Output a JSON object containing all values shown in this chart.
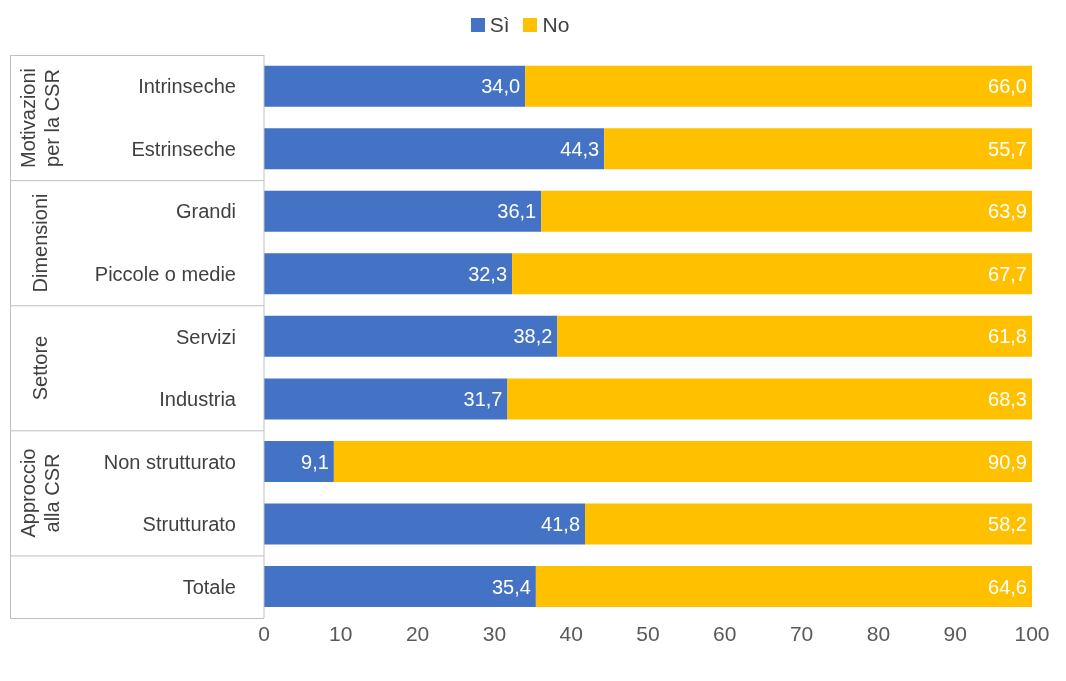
{
  "chart_data": {
    "type": "bar",
    "orientation": "horizontal",
    "stacked": true,
    "categories": [
      "Intrinseche",
      "Estrinseche",
      "Grandi",
      "Piccole o medie",
      "Servizi",
      "Industria",
      "Non strutturato",
      "Strutturato",
      "Totale"
    ],
    "series": [
      {
        "name": "Sì",
        "color": "#4472c4",
        "values": [
          34.0,
          44.3,
          36.1,
          32.3,
          38.2,
          31.7,
          9.1,
          41.8,
          35.4
        ],
        "value_labels": [
          "34,0",
          "44,3",
          "36,1",
          "32,3",
          "38,2",
          "31,7",
          "9,1",
          "41,8",
          "35,4"
        ]
      },
      {
        "name": "No",
        "color": "#ffc000",
        "values": [
          66.0,
          55.7,
          63.9,
          67.7,
          61.8,
          68.3,
          90.9,
          58.2,
          64.6
        ],
        "value_labels": [
          "66,0",
          "55,7",
          "63,9",
          "67,7",
          "61,8",
          "68,3",
          "90,9",
          "58,2",
          "64,6"
        ]
      }
    ],
    "xlim": [
      0,
      100
    ],
    "xticks": [
      0,
      10,
      20,
      30,
      40,
      50,
      60,
      70,
      80,
      90,
      100
    ],
    "legend": "top",
    "grid": false,
    "annotations": [
      "Motivazioni per la CSR",
      "Dimensioni",
      "Settore",
      "Approccio alla CSR"
    ]
  }
}
